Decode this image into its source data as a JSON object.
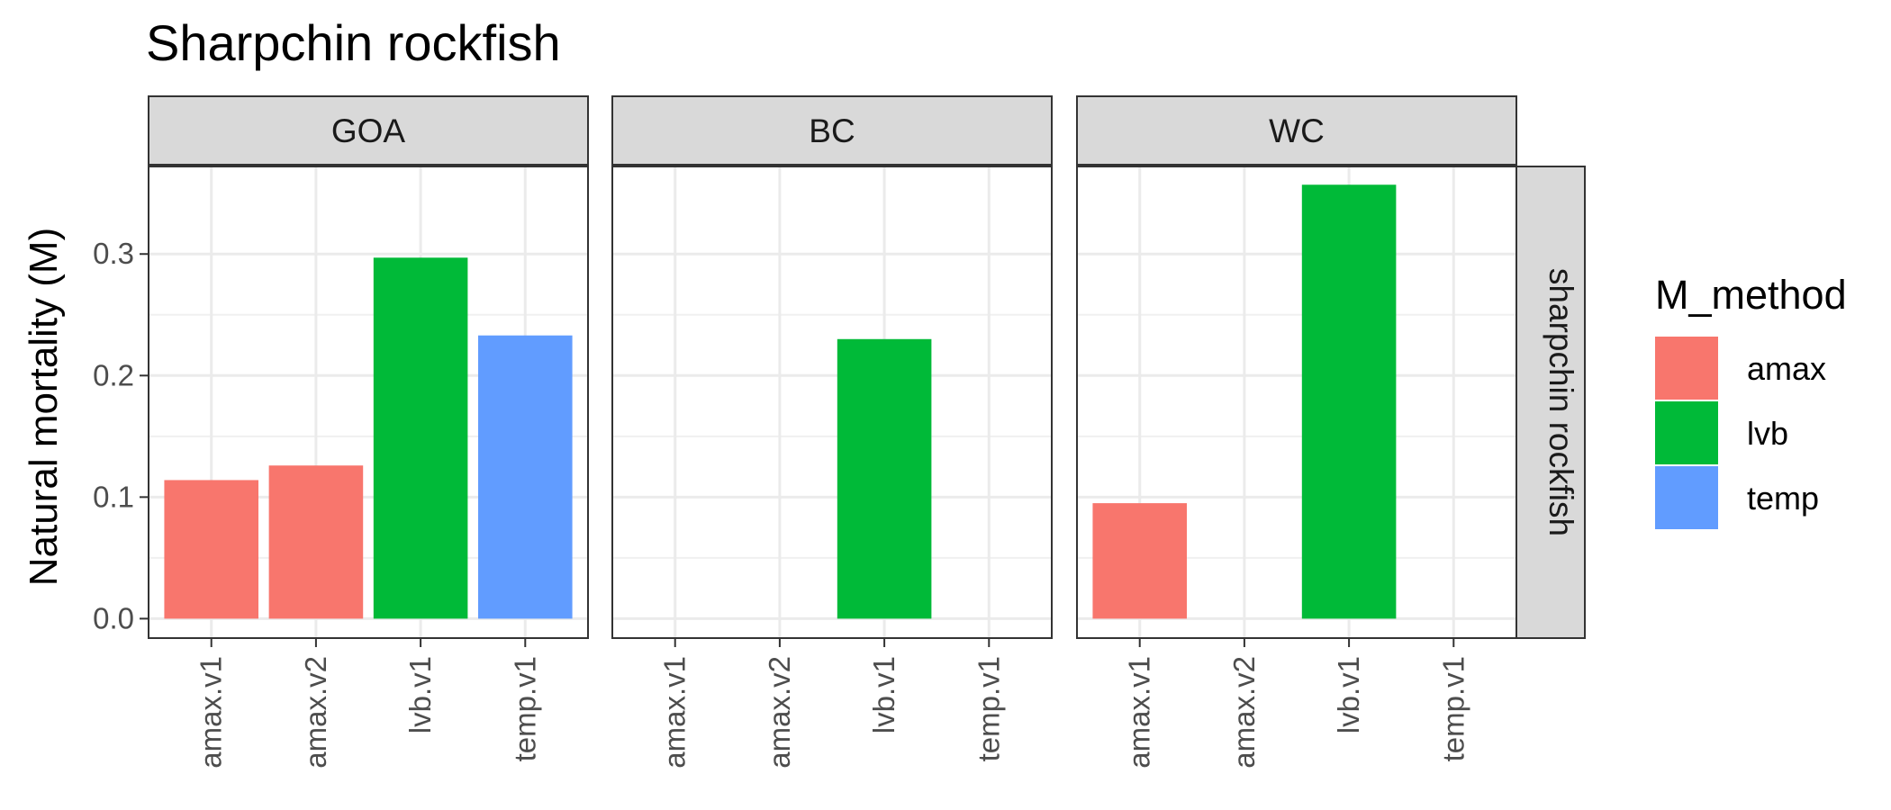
{
  "chart_data": {
    "type": "bar",
    "title": "Sharpchin rockfish",
    "ylabel": "Natural mortality (M)",
    "xlabel": "",
    "ylim": [
      -0.016,
      0.372
    ],
    "yticks": [
      0.0,
      0.1,
      0.2,
      0.3
    ],
    "ytick_labels": [
      "0.0",
      "0.1",
      "0.2",
      "0.3"
    ],
    "grid": true,
    "categories": [
      "amax.v1",
      "amax.v2",
      "lvb.v1",
      "temp.v1"
    ],
    "facet_row_label": "sharpchin rockfish",
    "legend": {
      "title": "M_method",
      "position": "right",
      "entries": [
        {
          "label": "amax",
          "color": "#F8766D"
        },
        {
          "label": "lvb",
          "color": "#00BA38"
        },
        {
          "label": "temp",
          "color": "#619CFF"
        }
      ]
    },
    "panels": [
      {
        "label": "GOA",
        "bars": [
          {
            "category": "amax.v1",
            "value": 0.114,
            "method": "amax"
          },
          {
            "category": "amax.v2",
            "value": 0.126,
            "method": "amax"
          },
          {
            "category": "lvb.v1",
            "value": 0.297,
            "method": "lvb"
          },
          {
            "category": "temp.v1",
            "value": 0.233,
            "method": "temp"
          }
        ]
      },
      {
        "label": "BC",
        "bars": [
          {
            "category": "lvb.v1",
            "value": 0.23,
            "method": "lvb"
          }
        ]
      },
      {
        "label": "WC",
        "bars": [
          {
            "category": "amax.v1",
            "value": 0.095,
            "method": "amax"
          },
          {
            "category": "lvb.v1",
            "value": 0.357,
            "method": "lvb"
          }
        ]
      }
    ]
  }
}
